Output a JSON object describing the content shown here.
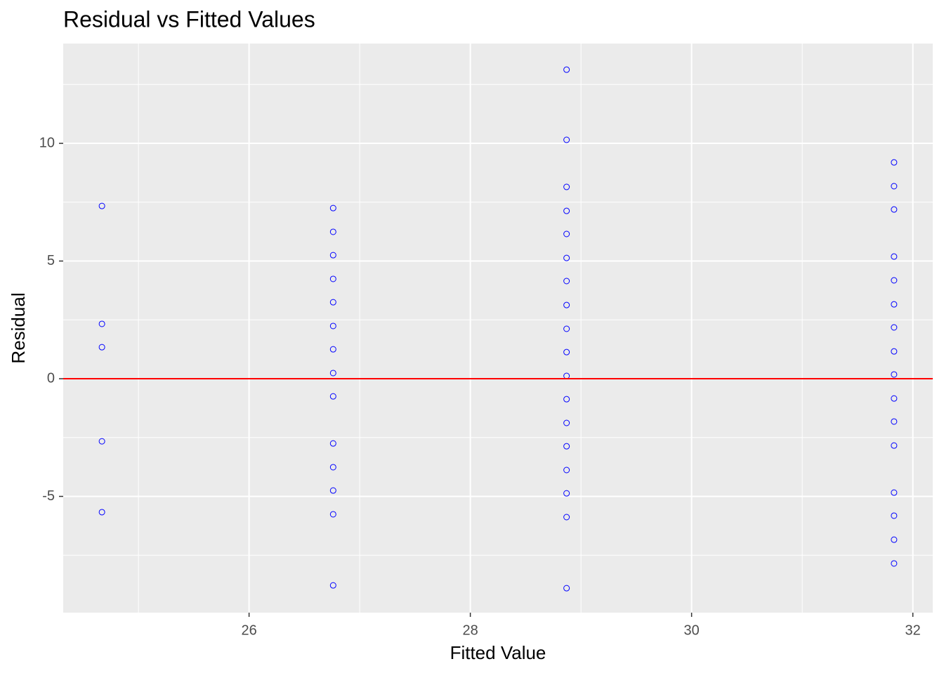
{
  "chart_data": {
    "type": "scatter",
    "title": "Residual vs Fitted Values",
    "x_label": "Fitted Value",
    "y_label": "Residual",
    "series": [
      {
        "color": "blue",
        "x": [
          24.67,
          24.67,
          24.67,
          24.67,
          24.67,
          26.76,
          26.76,
          26.76,
          26.76,
          26.76,
          26.76,
          26.76,
          26.76,
          26.76,
          26.76,
          26.76,
          26.76,
          26.76,
          26.76,
          28.87,
          28.87,
          28.87,
          28.87,
          28.87,
          28.87,
          28.87,
          28.87,
          28.87,
          28.87,
          28.87,
          28.87,
          28.87,
          28.87,
          28.87,
          28.87,
          28.87,
          28.87,
          31.83,
          31.83,
          31.83,
          31.83,
          31.83,
          31.83,
          31.83,
          31.83,
          31.83,
          31.83,
          31.83,
          31.83,
          31.83,
          31.83,
          31.83,
          31.83
        ],
        "values": [
          7.34,
          2.33,
          1.34,
          -2.66,
          -5.67,
          7.25,
          6.24,
          5.25,
          4.24,
          3.25,
          2.24,
          1.25,
          0.24,
          -0.75,
          -2.75,
          -3.76,
          -4.75,
          -5.76,
          -8.78,
          13.13,
          10.15,
          8.15,
          7.13,
          6.15,
          5.13,
          4.15,
          3.13,
          2.12,
          1.13,
          0.12,
          -0.87,
          -1.88,
          -2.87,
          -3.88,
          -4.87,
          -5.88,
          -8.9,
          9.19,
          8.18,
          7.19,
          5.19,
          4.18,
          3.16,
          2.18,
          1.16,
          0.18,
          -0.84,
          -1.82,
          -2.84,
          -4.84,
          -5.82,
          -6.84,
          -7.85
        ]
      }
    ],
    "xlim": [
      24.32,
      32.18
    ],
    "xticks": [
      26,
      28,
      30,
      32
    ],
    "xminor": [
      25,
      27,
      29,
      31
    ],
    "ylim": [
      -9.94,
      14.24
    ],
    "yticks": [
      -5,
      0,
      5,
      10
    ],
    "yminor": [
      -7.5,
      -2.5,
      2.5,
      7.5,
      12.5
    ],
    "grid": true,
    "hline": {
      "value": 0,
      "color": "red"
    }
  }
}
